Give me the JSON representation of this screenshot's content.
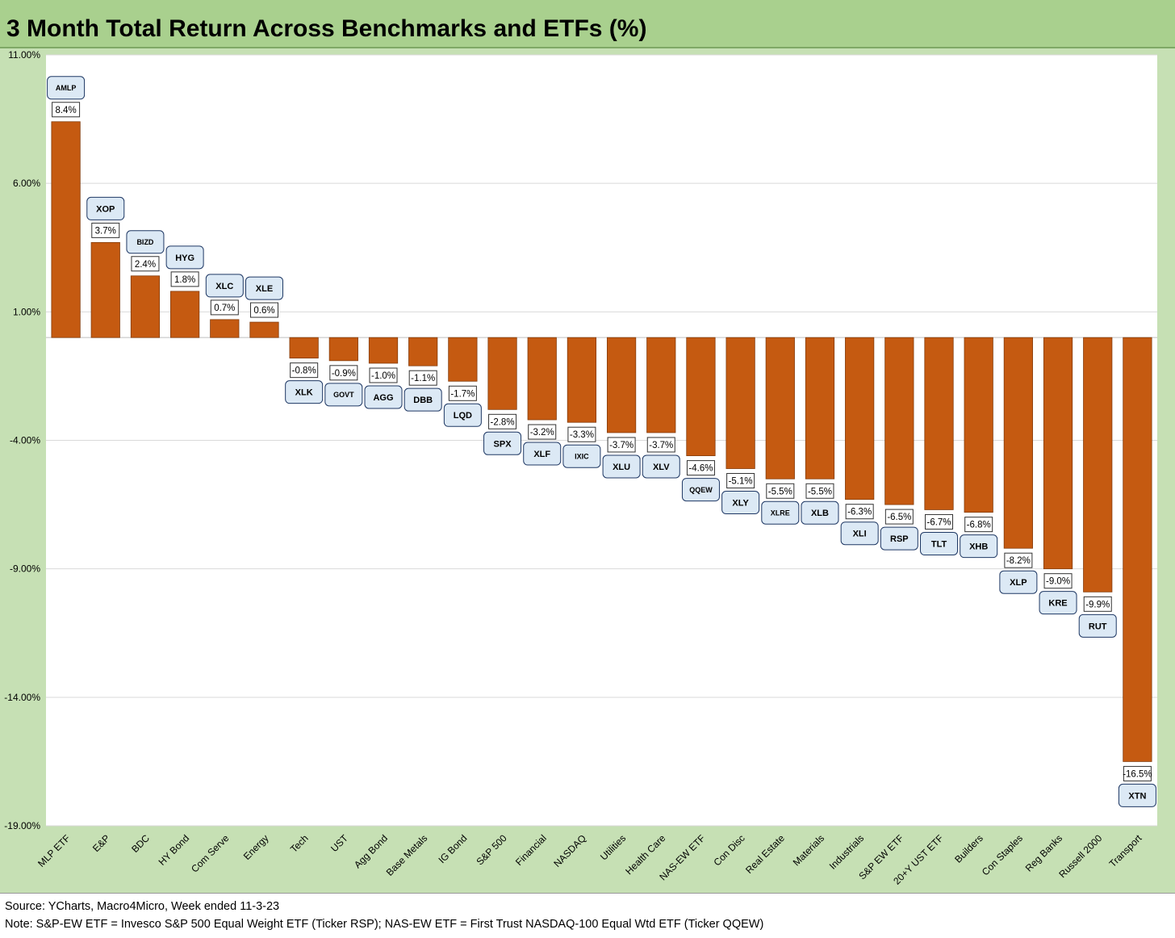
{
  "title": "3 Month Total Return Across Benchmarks and ETFs (%)",
  "footer": {
    "source": "Source: YCharts, Macro4Micro, Week ended 11-3-23",
    "note": "Note: S&P-EW ETF = Invesco S&P 500 Equal Weight ETF (Ticker RSP); NAS-EW ETF = First Trust NASDAQ-100 Equal Wtd ETF (Ticker QQEW)"
  },
  "colors": {
    "bar": "#c55a11",
    "frame": "#c6e0b4",
    "title_bar": "#a9d08e",
    "ticker_box": "#dce9f5"
  },
  "chart_data": {
    "type": "bar",
    "title": "3 Month Total Return Across Benchmarks and ETFs (%)",
    "xlabel": "",
    "ylabel": "",
    "ylim": [
      -19,
      11
    ],
    "yticks": [
      11,
      6,
      1,
      -4,
      -9,
      -14,
      -19
    ],
    "ytick_labels": [
      "11.00%",
      "6.00%",
      "1.00%",
      "-4.00%",
      "-9.00%",
      "-14.00%",
      "-19.00%"
    ],
    "grid": true,
    "legend": "none",
    "categories": [
      "MLP ETF",
      "E&P",
      "BDC",
      "HY Bond",
      "Com Serve",
      "Energy",
      "Tech",
      "UST",
      "Agg Bond",
      "Base Metals",
      "IG Bond",
      "S&P 500",
      "Financial",
      "NASDAQ",
      "Utilities",
      "Health Care",
      "NAS-EW ETF",
      "Con Disc",
      "Real Estate",
      "Materials",
      "Industrials",
      "S&P EW ETF",
      "20+Y UST ETF",
      "Builders",
      "Con Staples",
      "Reg Banks",
      "Russell 2000",
      "Transport"
    ],
    "values": [
      8.4,
      3.7,
      2.4,
      1.8,
      0.7,
      0.6,
      -0.8,
      -0.9,
      -1.0,
      -1.1,
      -1.7,
      -2.8,
      -3.2,
      -3.3,
      -3.7,
      -3.7,
      -4.6,
      -5.1,
      -5.5,
      -5.5,
      -6.3,
      -6.5,
      -6.7,
      -6.8,
      -8.2,
      -9.0,
      -9.9,
      -16.5
    ],
    "data_labels": [
      "8.4%",
      "3.7%",
      "2.4%",
      "1.8%",
      "0.7%",
      "0.6%",
      "-0.8%",
      "-0.9%",
      "-1.0%",
      "-1.1%",
      "-1.7%",
      "-2.8%",
      "-3.2%",
      "-3.3%",
      "-3.7%",
      "-3.7%",
      "-4.6%",
      "-5.1%",
      "-5.5%",
      "-5.5%",
      "-6.3%",
      "-6.5%",
      "-6.7%",
      "-6.8%",
      "-8.2%",
      "-9.0%",
      "-9.9%",
      "-16.5%"
    ],
    "tickers": [
      "AMLP",
      "XOP",
      "BIZD",
      "HYG",
      "XLC",
      "XLE",
      "XLK",
      "GOVT",
      "AGG",
      "DBB",
      "LQD",
      "SPX",
      "XLF",
      "IXIC",
      "XLU",
      "XLV",
      "QQEW",
      "XLY",
      "XLRE",
      "XLB",
      "XLI",
      "RSP",
      "TLT",
      "XHB",
      "XLP",
      "KRE",
      "RUT",
      "XTN"
    ]
  }
}
